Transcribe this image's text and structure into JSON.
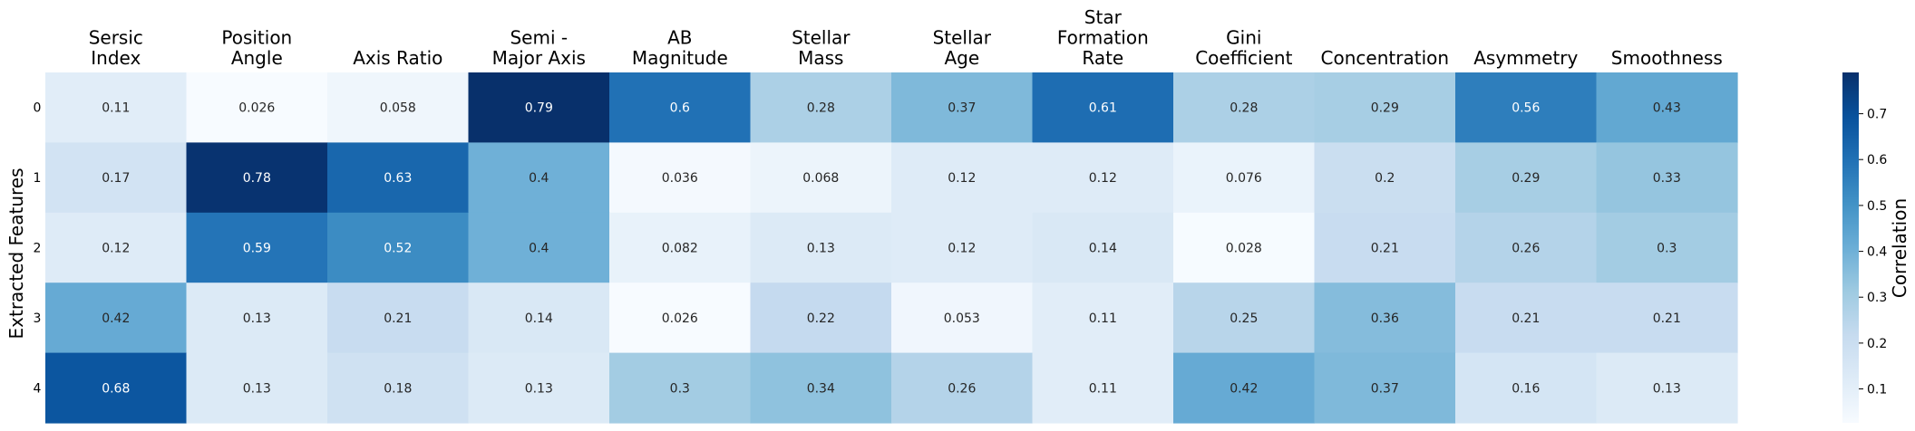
{
  "chart_data": {
    "type": "heatmap",
    "title": "",
    "xlabel": "",
    "ylabel": "Extracted Features",
    "x_categories": [
      [
        "Sersic",
        "Index"
      ],
      [
        "Position",
        "Angle"
      ],
      [
        "Axis Ratio"
      ],
      [
        "Semi -",
        "Major Axis"
      ],
      [
        "AB",
        "Magnitude"
      ],
      [
        "Stellar",
        "Mass"
      ],
      [
        "Stellar",
        "Age"
      ],
      [
        "Star",
        "Formation",
        "Rate"
      ],
      [
        "Gini",
        "Coefficient"
      ],
      [
        "Concentration"
      ],
      [
        "Asymmetry"
      ],
      [
        "Smoothness"
      ]
    ],
    "y_categories": [
      "0",
      "1",
      "2",
      "3",
      "4"
    ],
    "values": [
      [
        0.11,
        0.026,
        0.058,
        0.79,
        0.6,
        0.28,
        0.37,
        0.61,
        0.28,
        0.29,
        0.56,
        0.43
      ],
      [
        0.17,
        0.78,
        0.63,
        0.4,
        0.036,
        0.068,
        0.12,
        0.12,
        0.076,
        0.2,
        0.29,
        0.33
      ],
      [
        0.12,
        0.59,
        0.52,
        0.4,
        0.082,
        0.13,
        0.12,
        0.14,
        0.028,
        0.21,
        0.26,
        0.3
      ],
      [
        0.42,
        0.13,
        0.21,
        0.14,
        0.026,
        0.22,
        0.053,
        0.11,
        0.25,
        0.36,
        0.21,
        0.21
      ],
      [
        0.68,
        0.13,
        0.18,
        0.13,
        0.3,
        0.34,
        0.26,
        0.11,
        0.42,
        0.37,
        0.16,
        0.13
      ]
    ],
    "value_labels": [
      [
        "0.11",
        "0.026",
        "0.058",
        "0.79",
        "0.6",
        "0.28",
        "0.37",
        "0.61",
        "0.28",
        "0.29",
        "0.56",
        "0.43"
      ],
      [
        "0.17",
        "0.78",
        "0.63",
        "0.4",
        "0.036",
        "0.068",
        "0.12",
        "0.12",
        "0.076",
        "0.2",
        "0.29",
        "0.33"
      ],
      [
        "0.12",
        "0.59",
        "0.52",
        "0.4",
        "0.082",
        "0.13",
        "0.12",
        "0.14",
        "0.028",
        "0.21",
        "0.26",
        "0.3"
      ],
      [
        "0.42",
        "0.13",
        "0.21",
        "0.14",
        "0.026",
        "0.22",
        "0.053",
        "0.11",
        "0.25",
        "0.36",
        "0.21",
        "0.21"
      ],
      [
        "0.68",
        "0.13",
        "0.18",
        "0.13",
        "0.3",
        "0.34",
        "0.26",
        "0.11",
        "0.42",
        "0.37",
        "0.16",
        "0.13"
      ]
    ],
    "colormap": "Blues",
    "vmin": 0.026,
    "vmax": 0.79,
    "colorbar": {
      "label": "Correlation",
      "ticks": [
        0.1,
        0.2,
        0.3,
        0.4,
        0.5,
        0.6,
        0.7
      ],
      "tick_labels": [
        "0.1",
        "0.2",
        "0.3",
        "0.4",
        "0.5",
        "0.6",
        "0.7"
      ]
    },
    "x_label_position": "top",
    "grid": false
  }
}
